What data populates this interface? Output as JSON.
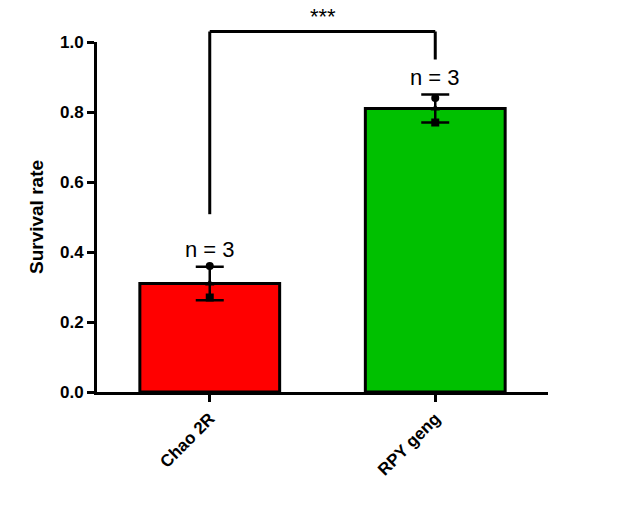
{
  "chart_data": {
    "type": "bar",
    "categories": [
      "Chao 2R",
      "RPY geng"
    ],
    "values": [
      0.31,
      0.81
    ],
    "errors": [
      0.048,
      0.04
    ],
    "points": [
      [
        0.36,
        0.31,
        0.27
      ],
      [
        0.84,
        0.81,
        0.77
      ]
    ],
    "n_labels": [
      "n = 3",
      "n = 3"
    ],
    "significance": "***",
    "colors": [
      "#ff0000",
      "#00c000"
    ],
    "ylabel": "Survival rate",
    "ylim": [
      0,
      1
    ],
    "yticks": [
      {
        "value": 0,
        "label": "0.0"
      },
      {
        "value": 0.2,
        "label": "0.2"
      },
      {
        "value": 0.4,
        "label": "0.4"
      },
      {
        "value": 0.6,
        "label": "0.6"
      },
      {
        "value": 0.8,
        "label": "0.8"
      },
      {
        "value": 1,
        "label": "1.0"
      }
    ]
  }
}
